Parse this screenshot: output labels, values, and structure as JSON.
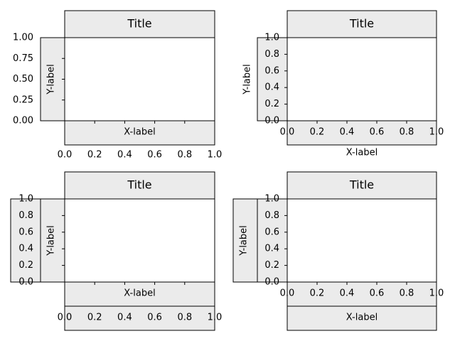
{
  "chart_data": [
    {
      "type": "axes",
      "title": "Title",
      "xlabel": "X-label",
      "ylabel": "Y-label",
      "xlim": [
        0,
        1
      ],
      "ylim": [
        0,
        1
      ],
      "xticks": [
        {
          "value": 0,
          "label": "0.0"
        },
        {
          "value": 0.2,
          "label": "0.2"
        },
        {
          "value": 0.4,
          "label": "0.4"
        },
        {
          "value": 0.6,
          "label": "0.6"
        },
        {
          "value": 0.8,
          "label": "0.8"
        },
        {
          "value": 1,
          "label": "1.0"
        }
      ],
      "yticks": [
        {
          "value": 0,
          "label": "0.00"
        },
        {
          "value": 0.25,
          "label": "0.25"
        },
        {
          "value": 0.5,
          "label": "0.50"
        },
        {
          "value": 0.75,
          "label": "0.75"
        },
        {
          "value": 1,
          "label": "1.00"
        }
      ]
    },
    {
      "type": "axes",
      "title": "Title",
      "xlabel": "X-label",
      "ylabel": "Y-label",
      "xlim": [
        0,
        1
      ],
      "ylim": [
        0,
        1
      ],
      "xticks": [
        {
          "value": 0,
          "label": "0.0"
        },
        {
          "value": 0.2,
          "label": "0.2"
        },
        {
          "value": 0.4,
          "label": "0.4"
        },
        {
          "value": 0.6,
          "label": "0.6"
        },
        {
          "value": 0.8,
          "label": "0.8"
        },
        {
          "value": 1,
          "label": "1.0"
        }
      ],
      "yticks": [
        {
          "value": 0,
          "label": "0.0"
        },
        {
          "value": 0.2,
          "label": "0.2"
        },
        {
          "value": 0.4,
          "label": "0.4"
        },
        {
          "value": 0.6,
          "label": "0.6"
        },
        {
          "value": 0.8,
          "label": "0.8"
        },
        {
          "value": 1,
          "label": "1.0"
        }
      ]
    },
    {
      "type": "axes",
      "title": "Title",
      "xlabel": "X-label",
      "ylabel": "Y-label",
      "xlim": [
        0,
        1
      ],
      "ylim": [
        0,
        1
      ],
      "xticks": [
        {
          "value": 0,
          "label": "0.0"
        },
        {
          "value": 0.2,
          "label": "0.2"
        },
        {
          "value": 0.4,
          "label": "0.4"
        },
        {
          "value": 0.6,
          "label": "0.6"
        },
        {
          "value": 0.8,
          "label": "0.8"
        },
        {
          "value": 1,
          "label": "1.0"
        }
      ],
      "yticks": [
        {
          "value": 0,
          "label": "0.0"
        },
        {
          "value": 0.2,
          "label": "0.2"
        },
        {
          "value": 0.4,
          "label": "0.4"
        },
        {
          "value": 0.6,
          "label": "0.6"
        },
        {
          "value": 0.8,
          "label": "0.8"
        },
        {
          "value": 1,
          "label": "1.0"
        }
      ]
    },
    {
      "type": "axes",
      "title": "Title",
      "xlabel": "X-label",
      "ylabel": "Y-label",
      "xlim": [
        0,
        1
      ],
      "ylim": [
        0,
        1
      ],
      "xticks": [
        {
          "value": 0,
          "label": "0.0"
        },
        {
          "value": 0.2,
          "label": "0.2"
        },
        {
          "value": 0.4,
          "label": "0.4"
        },
        {
          "value": 0.6,
          "label": "0.6"
        },
        {
          "value": 0.8,
          "label": "0.8"
        },
        {
          "value": 1,
          "label": "1.0"
        }
      ],
      "yticks": [
        {
          "value": 0,
          "label": "0.0"
        },
        {
          "value": 0.2,
          "label": "0.2"
        },
        {
          "value": 0.4,
          "label": "0.4"
        },
        {
          "value": 0.6,
          "label": "0.6"
        },
        {
          "value": 0.8,
          "label": "0.8"
        },
        {
          "value": 1,
          "label": "1.0"
        }
      ]
    }
  ]
}
